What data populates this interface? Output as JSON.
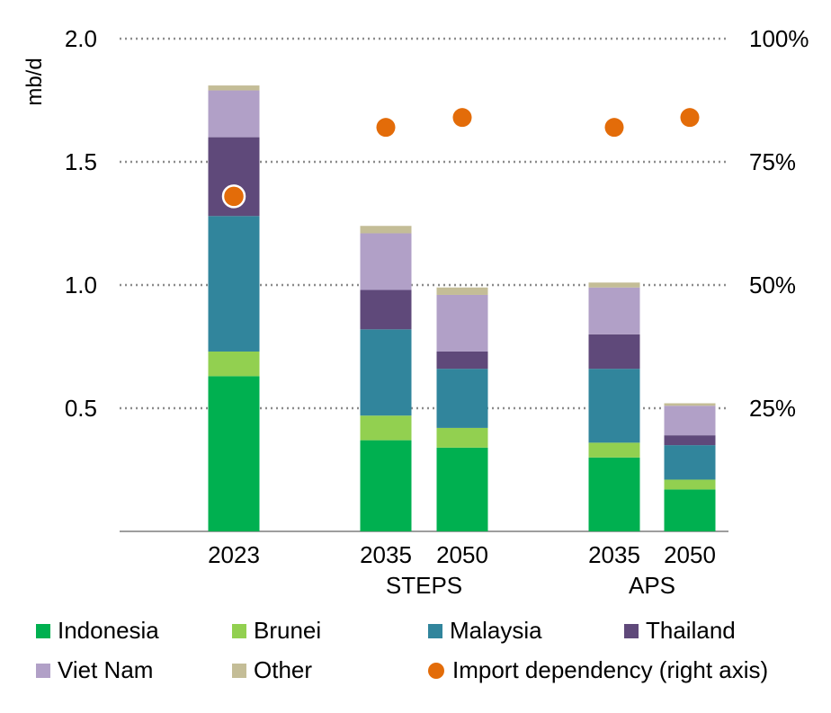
{
  "chart_data": {
    "type": "bar",
    "stacked": true,
    "ylabel": "mb/d",
    "ylim": [
      0,
      2.0
    ],
    "yticks": [
      "0.5",
      "1.0",
      "1.5",
      "2.0"
    ],
    "y2ticks": [
      "25%",
      "50%",
      "75%",
      "100%"
    ],
    "y2lim": [
      0,
      1.0
    ],
    "grid": "horizontal dotted",
    "categories": [
      "2023",
      "2035",
      "2050",
      "2035",
      "2050"
    ],
    "groups": [
      {
        "label": "",
        "categories": [
          0
        ]
      },
      {
        "label": "STEPS",
        "categories": [
          1,
          2
        ]
      },
      {
        "label": "APS",
        "categories": [
          3,
          4
        ]
      }
    ],
    "series": [
      {
        "name": "Indonesia",
        "color": "#00b050",
        "values": [
          0.63,
          0.37,
          0.34,
          0.3,
          0.17
        ]
      },
      {
        "name": "Brunei",
        "color": "#92d050",
        "values": [
          0.1,
          0.1,
          0.08,
          0.06,
          0.04
        ]
      },
      {
        "name": "Malaysia",
        "color": "#31859c",
        "values": [
          0.55,
          0.35,
          0.24,
          0.3,
          0.14
        ]
      },
      {
        "name": "Thailand",
        "color": "#5f497a",
        "values": [
          0.32,
          0.16,
          0.07,
          0.14,
          0.04
        ]
      },
      {
        "name": "Viet Nam",
        "color": "#b1a0c7",
        "values": [
          0.19,
          0.23,
          0.23,
          0.19,
          0.12
        ]
      },
      {
        "name": "Other",
        "color": "#c4bd97",
        "values": [
          0.02,
          0.03,
          0.03,
          0.02,
          0.01
        ]
      }
    ],
    "import_dependency": {
      "name": "Import dependency (right axis)",
      "color": "#e36c09",
      "values": [
        0.68,
        0.82,
        0.84,
        0.82,
        0.84
      ],
      "highlight_first": true
    },
    "legend_position": "bottom"
  }
}
